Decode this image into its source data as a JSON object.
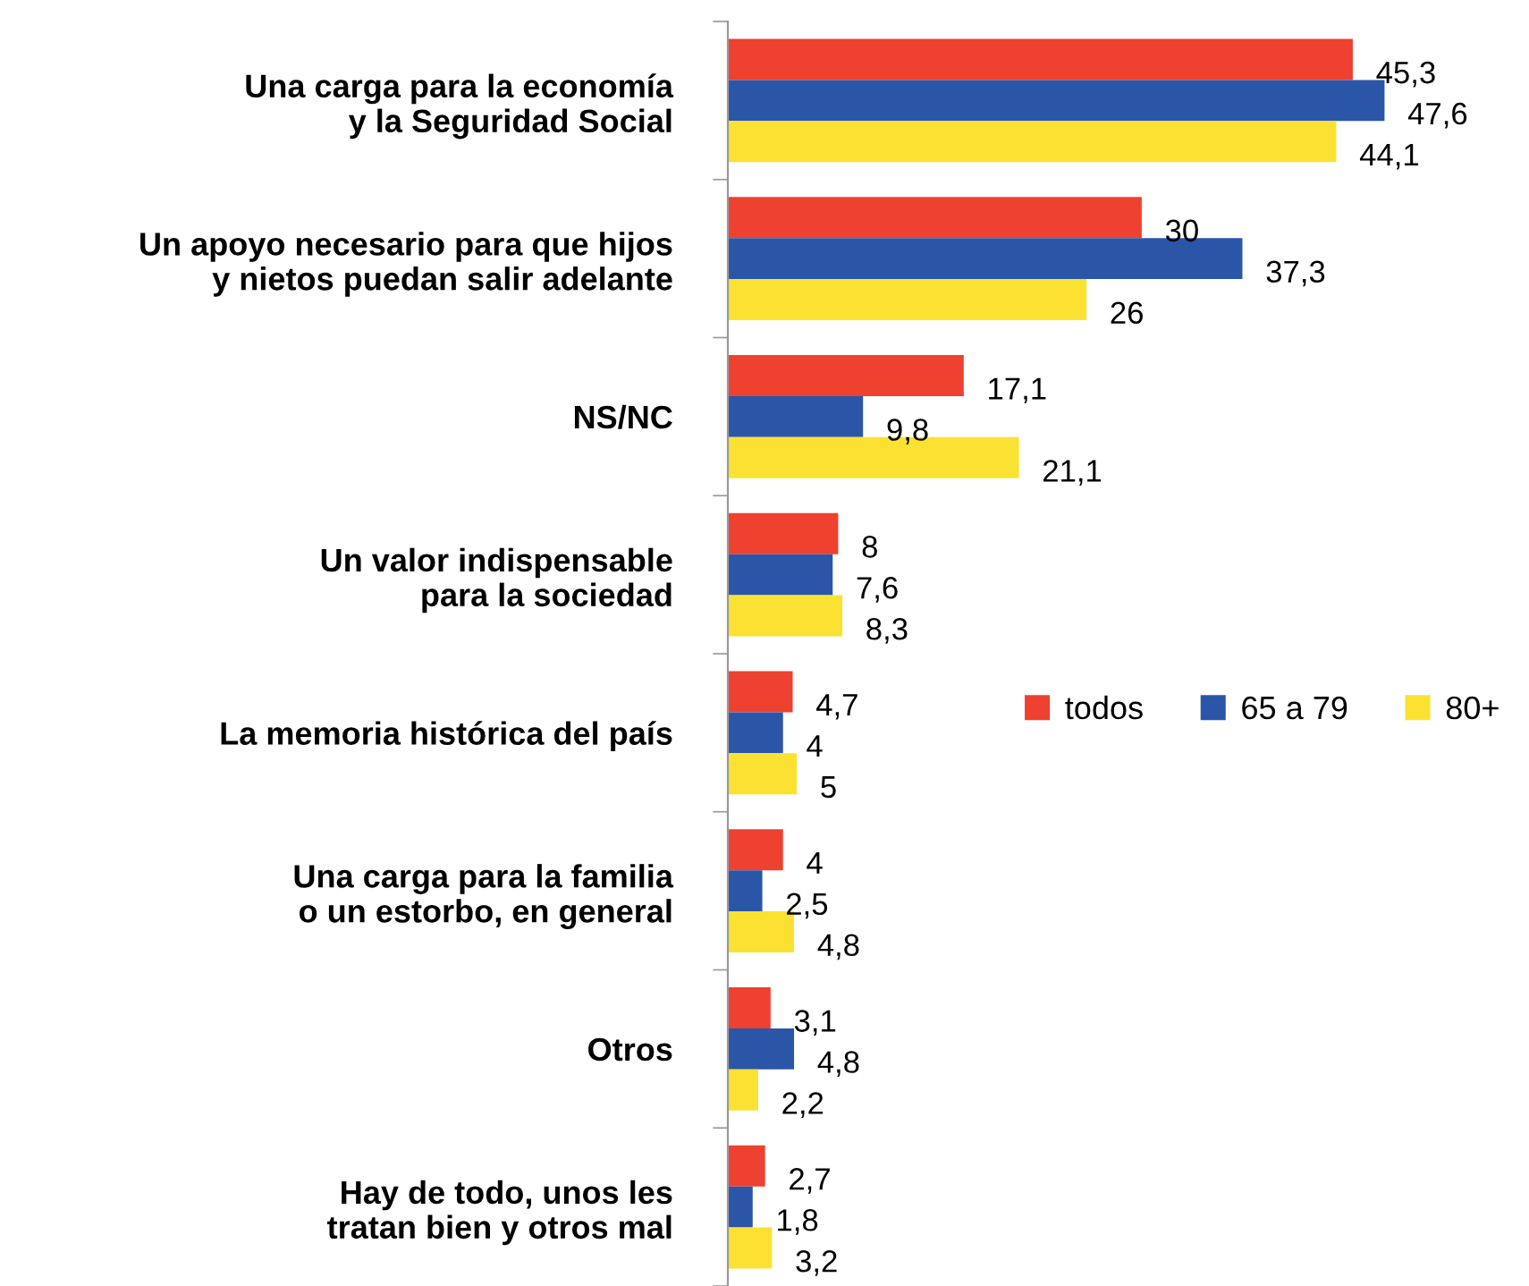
{
  "chart_data": {
    "type": "bar",
    "orientation": "horizontal",
    "legend": "right",
    "tick_labels": "y",
    "grid": false,
    "categories": [
      "Una carga para la economía\ny la Seguridad Social",
      "Un apoyo necesario para que hijos\ny nietos puedan salir adelante",
      "NS/NC",
      "Un valor indispensable\npara la sociedad",
      "La memoria histórica del país",
      "Una carga para la familia\no un estorbo, en general",
      "Otros",
      "Hay de todo, unos les\ntratan bien y otros mal"
    ],
    "series": [
      {
        "name": "todos",
        "color": "#ee4130",
        "values": [
          45.3,
          30,
          17.1,
          8,
          4.7,
          4,
          3.1,
          2.7
        ],
        "value_labels": [
          "45,3",
          "30",
          "17,1",
          "8",
          "4,7",
          "4",
          "3,1",
          "2,7"
        ]
      },
      {
        "name": "65 a 79",
        "color": "#2b56a8",
        "values": [
          47.6,
          37.3,
          9.8,
          7.6,
          4,
          2.5,
          4.8,
          1.8
        ],
        "value_labels": [
          "47,6",
          "37,3",
          "9,8",
          "7,6",
          "4",
          "2,5",
          "4,8",
          "1,8"
        ]
      },
      {
        "name": "80+",
        "color": "#fbe232",
        "values": [
          44.1,
          26,
          21.1,
          8.3,
          5,
          4.8,
          2.2,
          3.2
        ],
        "value_labels": [
          "44,1",
          "26",
          "21,1",
          "8,3",
          "5",
          "4,8",
          "2,2",
          "3,2"
        ]
      }
    ]
  }
}
